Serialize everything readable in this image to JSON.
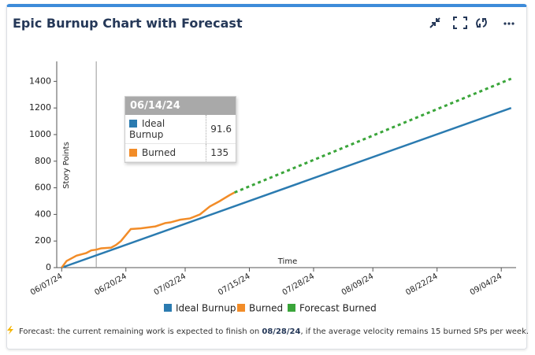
{
  "title": "Epic Burnup Chart with Forecast",
  "chart_data": {
    "type": "line",
    "x_label": "Time",
    "y_label": "Story Points",
    "xlim": [
      "06/06/24",
      "09/07/24"
    ],
    "xticks": [
      "06/07/24",
      "06/20/24",
      "07/02/24",
      "07/15/24",
      "07/28/24",
      "08/09/24",
      "08/22/24",
      "09/04/24"
    ],
    "ylim": [
      0,
      1550
    ],
    "yticks": [
      0,
      200,
      400,
      600,
      800,
      1000,
      1200,
      1400
    ],
    "series": [
      {
        "name": "Ideal Burnup",
        "color": "#2b7bb0",
        "dashed": false,
        "x": [
          "06/07/24",
          "09/06/24"
        ],
        "values": [
          0,
          1200
        ]
      },
      {
        "name": "Burned",
        "color": "#f28c28",
        "dashed": false,
        "x": [
          "06/07/24",
          "06/08/24",
          "06/10/24",
          "06/12/24",
          "06/13/24",
          "06/14/24",
          "06/15/24",
          "06/17/24",
          "06/18/24",
          "06/19/24",
          "06/21/24",
          "06/23/24",
          "06/26/24",
          "06/28/24",
          "06/29/24",
          "07/01/24",
          "07/03/24",
          "07/05/24",
          "07/07/24",
          "07/09/24",
          "07/11/24",
          "07/12/24"
        ],
        "values": [
          0,
          50,
          90,
          110,
          130,
          135,
          145,
          150,
          170,
          200,
          290,
          295,
          310,
          335,
          340,
          360,
          370,
          400,
          460,
          500,
          545,
          565
        ]
      },
      {
        "name": "Forecast Burned",
        "color": "#3aa53a",
        "dashed": true,
        "x": [
          "07/12/24",
          "09/06/24"
        ],
        "values": [
          565,
          1420
        ]
      }
    ],
    "tooltip": {
      "x": "06/14/24",
      "rows": [
        {
          "name": "Ideal Burnup",
          "value": 91.6
        },
        {
          "name": "Burned",
          "value": 135
        }
      ]
    }
  },
  "note": {
    "prefix": "Forecast: the current remaining work is expected to finish on ",
    "date": "08/28/24",
    "suffix": ", if the average velocity remains 15 burned SPs per week."
  }
}
